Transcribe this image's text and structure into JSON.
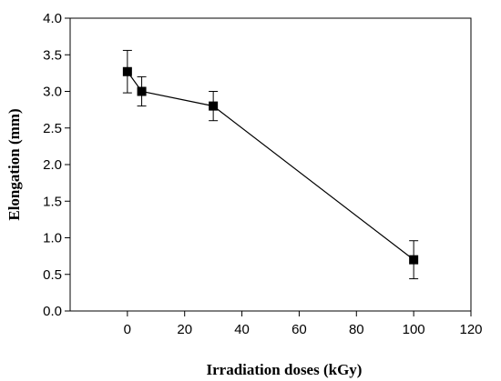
{
  "chart_data": {
    "type": "line",
    "title": "",
    "xlabel": "Irradiation doses (kGy)",
    "ylabel": "Elongation (mm)",
    "xlim": [
      -20,
      120
    ],
    "ylim": [
      0.0,
      4.0
    ],
    "xticks": [
      "0",
      "20",
      "40",
      "60",
      "80",
      "100",
      "120"
    ],
    "yticks": [
      "0.0",
      "0.5",
      "1.0",
      "1.5",
      "2.0",
      "2.5",
      "3.0",
      "3.5",
      "4.0"
    ],
    "grid": false,
    "legend": "none",
    "series": [
      {
        "x": [
          0,
          5,
          30,
          100
        ],
        "values": [
          3.27,
          3.0,
          2.8,
          0.7
        ],
        "error": [
          0.29,
          0.2,
          0.2,
          0.26
        ]
      }
    ]
  }
}
